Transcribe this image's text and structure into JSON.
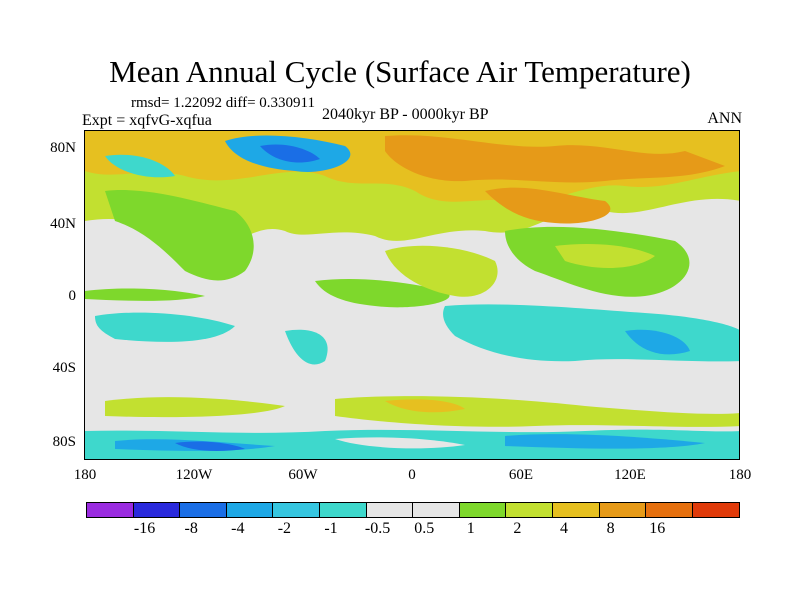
{
  "title": "Mean Annual Cycle (Surface Air Temperature)",
  "stats": "rmsd= 1.22092 diff= 0.330911",
  "experiment": "Expt = xqfvG-xqfua",
  "period": "2040kyr BP - 0000kyr BP",
  "season": "ANN",
  "lat_labels": [
    "80N",
    "40N",
    "0",
    "40S",
    "80S"
  ],
  "lon_labels": [
    "180",
    "120W",
    "60W",
    "0",
    "60E",
    "120E",
    "180"
  ],
  "colorbar": {
    "colors": [
      "#9a2be0",
      "#2a2adc",
      "#1a6ee6",
      "#1ea8e6",
      "#36c6e0",
      "#3ed8cc",
      "#e6e6e6",
      "#e6e6e6",
      "#7ed82c",
      "#c2e030",
      "#e6c020",
      "#e69a18",
      "#e6700e",
      "#e03a0a"
    ],
    "labels": [
      "-16",
      "-8",
      "-4",
      "-2",
      "-1",
      "-0.5",
      "0.5",
      "1",
      "2",
      "4",
      "8",
      "16"
    ]
  }
}
